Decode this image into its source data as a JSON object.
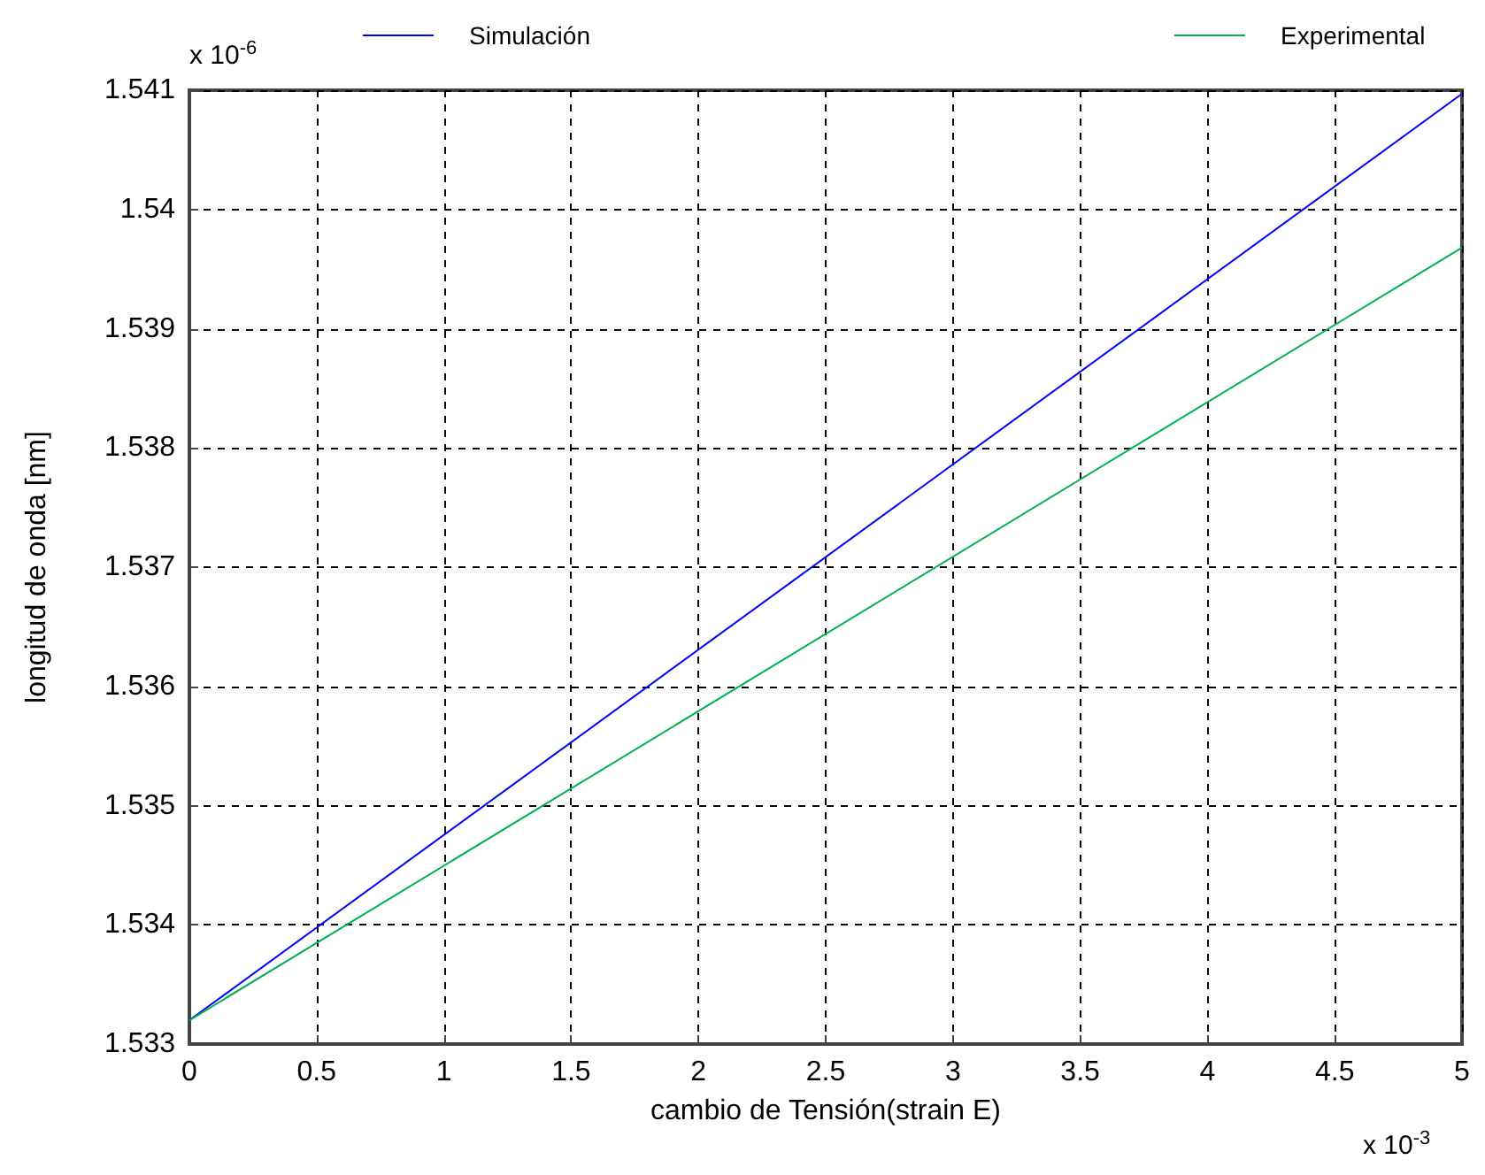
{
  "chart_data": {
    "type": "line",
    "xlabel": "cambio de Tensión(strain E)",
    "ylabel": "longitud de onda [nm]",
    "x": [
      0,
      5
    ],
    "series": [
      {
        "name": "Simulación",
        "color": "#0000ff",
        "values": [
          1.5332,
          1.54097
        ]
      },
      {
        "name": "Experimental",
        "color": "#00b050",
        "values": [
          1.5332,
          1.53968
        ]
      }
    ],
    "xlim": [
      0,
      5
    ],
    "xticks": [
      0,
      0.5,
      1,
      1.5,
      2,
      2.5,
      3,
      3.5,
      4,
      4.5,
      5
    ],
    "ylim": [
      1.533,
      1.541
    ],
    "yticks": [
      1.533,
      1.534,
      1.535,
      1.536,
      1.537,
      1.538,
      1.539,
      1.54,
      1.541
    ],
    "grid": true,
    "legend": "top",
    "marker": "none",
    "line_style": "solid",
    "annotations": [
      "x 10$^{-6}$",
      "x 10$^{-3}$"
    ]
  }
}
